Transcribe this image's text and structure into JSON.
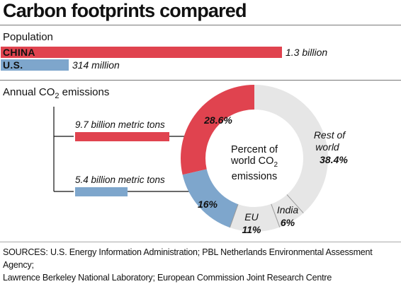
{
  "title": "Carbon footprints compared",
  "population": {
    "label": "Population",
    "china": {
      "name": "CHINA",
      "value_label": "1.3 billion",
      "value": 1.3
    },
    "us": {
      "name": "U.S.",
      "value_label": "314 million",
      "value": 0.314
    }
  },
  "emissions": {
    "label_main": "Annual CO",
    "label_sub": "2",
    "label_tail": " emissions",
    "china_label": "9.7 billion metric tons",
    "us_label": "5.4 billion metric tons"
  },
  "donut": {
    "center_line1": "Percent of",
    "center_line2": "world CO",
    "center_sub": "2",
    "center_line3": "emissions"
  },
  "colors": {
    "china": "#e0434f",
    "us": "#7ea6cc",
    "other": "#e6e6e6"
  },
  "chart_data": {
    "type": "pie",
    "categories": [
      "China",
      "U.S.",
      "EU",
      "India",
      "Rest of world"
    ],
    "values": [
      28.6,
      16,
      11,
      6,
      38.4
    ],
    "labels": [
      "28.6%",
      "16%",
      "11%",
      "6%",
      "38.4%"
    ],
    "series": [
      {
        "values": [
          28.6,
          16,
          11,
          6,
          38.4
        ]
      }
    ]
  },
  "labels": {
    "eu_name": "EU",
    "eu_value": "11%",
    "india_name": "India",
    "india_value": "6%",
    "rest_name_1": "Rest of",
    "rest_name_2": "world",
    "rest_value": "38.4%"
  },
  "sources": {
    "line1": "SOURCES: U.S. Energy Information Administration; PBL Netherlands Environmental Assessment Agency;",
    "line2": "Lawrence Berkeley National Laboratory; European Commission Joint Research Centre"
  }
}
